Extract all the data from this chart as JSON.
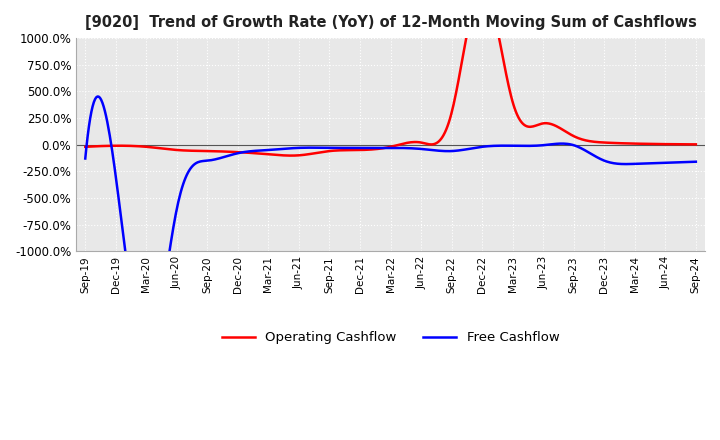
{
  "title": "[9020]  Trend of Growth Rate (YoY) of 12-Month Moving Sum of Cashflows",
  "ylim": [
    -1000,
    1000
  ],
  "yticks": [
    -1000,
    -750,
    -500,
    -250,
    0,
    250,
    500,
    750,
    1000
  ],
  "ytick_labels": [
    "-1000.0%",
    "-750.0%",
    "-500.0%",
    "-250.0%",
    "0.0%",
    "250.0%",
    "500.0%",
    "750.0%",
    "1000.0%"
  ],
  "background_color": "#ffffff",
  "plot_bg_color": "#e8e8e8",
  "grid_color": "#ffffff",
  "operating_color": "#ff0000",
  "free_color": "#0000ff",
  "legend_labels": [
    "Operating Cashflow",
    "Free Cashflow"
  ],
  "x_labels": [
    "Sep-19",
    "Dec-19",
    "Mar-20",
    "Jun-20",
    "Sep-20",
    "Dec-20",
    "Mar-21",
    "Jun-21",
    "Sep-21",
    "Dec-21",
    "Mar-22",
    "Jun-22",
    "Sep-22",
    "Dec-22",
    "Mar-23",
    "Jun-23",
    "Sep-23",
    "Dec-23",
    "Mar-24",
    "Jun-24",
    "Sep-24"
  ],
  "operating_y": [
    -20,
    -10,
    -20,
    -50,
    -60,
    -70,
    -90,
    -100,
    -60,
    -50,
    -20,
    20,
    300,
    1500,
    400,
    200,
    80,
    20,
    10,
    5,
    3
  ],
  "free_y": [
    -130,
    -300,
    -2000,
    -600,
    -150,
    -80,
    -50,
    -30,
    -30,
    -30,
    -30,
    -40,
    -60,
    -20,
    -10,
    -5,
    -5,
    -150,
    -180,
    -170,
    -160
  ]
}
